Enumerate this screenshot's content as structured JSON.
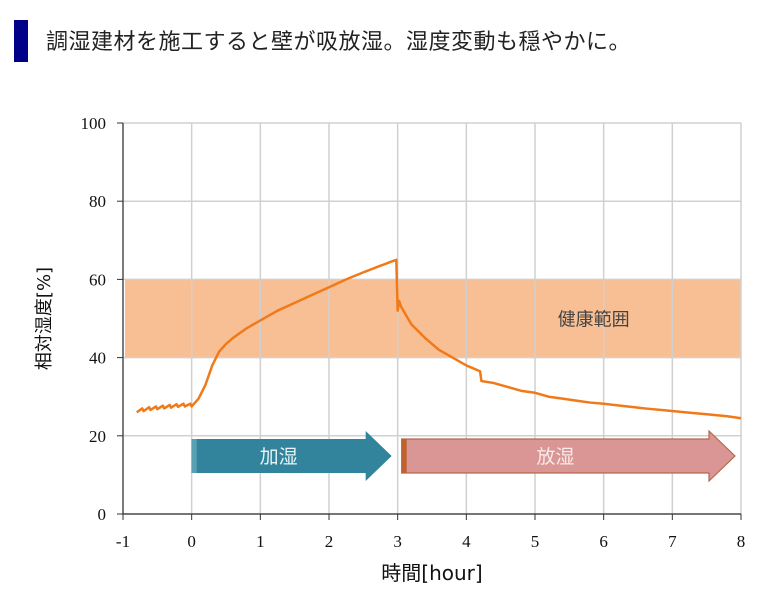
{
  "title": "調湿建材を施工すると壁が吸放湿。湿度変動も穏やかに。",
  "chart_data": {
    "type": "line",
    "title": "調湿建材を施工すると壁が吸放湿。湿度変動も穏やかに。",
    "xlabel": "時間[hour]",
    "ylabel": "相対湿度[%]",
    "xlim": [
      -1,
      8
    ],
    "ylim": [
      0,
      100
    ],
    "xticks": [
      "-1",
      "0",
      "1",
      "2",
      "3",
      "4",
      "5",
      "6",
      "7",
      "8"
    ],
    "yticks": [
      "0",
      "20",
      "40",
      "60",
      "80",
      "100"
    ],
    "grid": true,
    "line_color": "#f07a1a",
    "band": {
      "label": "健康範囲",
      "range": [
        40,
        60
      ],
      "color": "#f8bf94"
    },
    "arrows": [
      {
        "label": "加湿",
        "from": 0,
        "to": 3,
        "color": "#31849b"
      },
      {
        "label": "放湿",
        "from": 3,
        "to": 8,
        "color": "#da9694"
      }
    ],
    "series": [
      {
        "name": "相対湿度",
        "x": [
          -0.8,
          -0.72,
          -0.7,
          -0.62,
          -0.6,
          -0.52,
          -0.5,
          -0.42,
          -0.4,
          -0.32,
          -0.3,
          -0.22,
          -0.2,
          -0.12,
          -0.1,
          -0.02,
          0,
          0.1,
          0.2,
          0.3,
          0.4,
          0.5,
          0.6,
          0.8,
          1.0,
          1.25,
          1.5,
          1.75,
          2.0,
          2.25,
          2.5,
          2.75,
          2.9,
          2.98,
          3.0,
          3.02,
          3.05,
          3.2,
          3.4,
          3.6,
          3.8,
          4.0,
          4.2,
          4.22,
          4.4,
          4.6,
          4.8,
          5.0,
          5.2,
          5.4,
          5.6,
          5.8,
          6.0,
          6.3,
          6.6,
          6.9,
          7.2,
          7.5,
          7.8,
          8.0
        ],
        "y": [
          26,
          27,
          26.3,
          27.3,
          26.6,
          27.5,
          26.8,
          27.7,
          27,
          27.9,
          27.2,
          28.1,
          27.4,
          28.2,
          27.5,
          28.2,
          27.5,
          29.5,
          33,
          38,
          41.5,
          43.5,
          45,
          47.5,
          49.5,
          52,
          54,
          56,
          58,
          60,
          61.8,
          63.5,
          64.5,
          65,
          52,
          54.5,
          53,
          48.5,
          45,
          42,
          40,
          38,
          36.5,
          34,
          33.5,
          32.5,
          31.5,
          31,
          30,
          29.5,
          29,
          28.5,
          28.2,
          27.6,
          27,
          26.5,
          26,
          25.5,
          25,
          24.5
        ]
      }
    ]
  }
}
